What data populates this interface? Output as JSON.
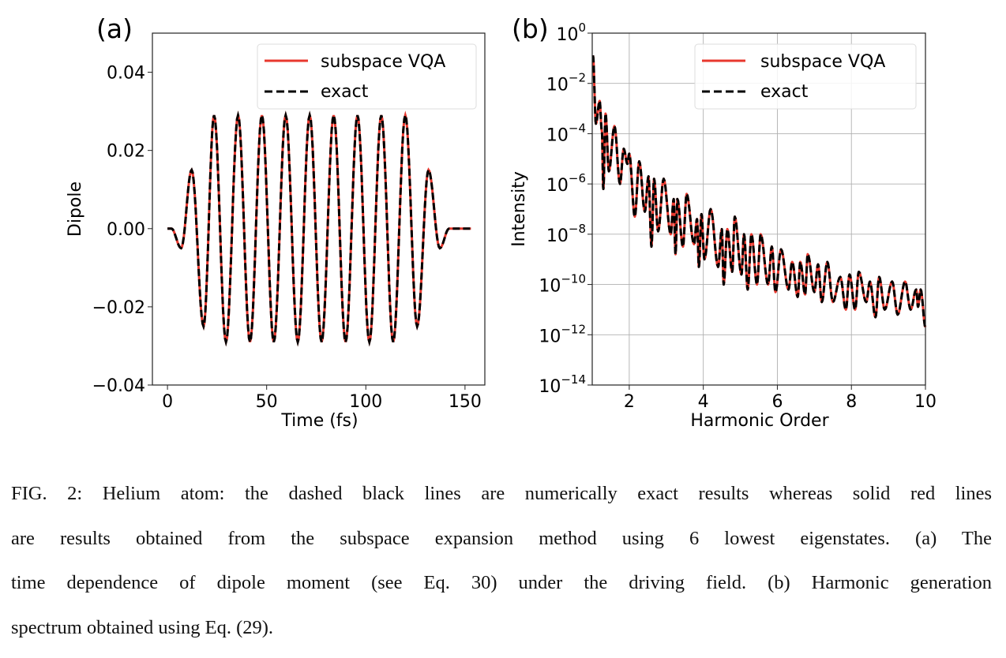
{
  "figure": {
    "caption_lines": [
      "FIG. 2: Helium atom: the dashed black lines are numerically exact results whereas solid red lines",
      "are results obtained from the subspace expansion method using 6 lowest eigenstates.  (a) The",
      "time dependence of dipole moment (see Eq. 30) under the driving field. (b) Harmonic generation",
      "spectrum obtained using Eq. (29)."
    ]
  },
  "colors": {
    "vqa": "#e8382e",
    "exact": "#000000",
    "grid": "#b0b0b0"
  },
  "chart_data": [
    {
      "panel_label": "(a)",
      "type": "line",
      "xlabel": "Time (fs)",
      "ylabel": "Dipole",
      "xlim": [
        -7.6,
        160
      ],
      "ylim": [
        -0.04,
        0.05
      ],
      "xticks": [
        {
          "v": 0,
          "label": "0"
        },
        {
          "v": 50,
          "label": "50"
        },
        {
          "v": 100,
          "label": "100"
        },
        {
          "v": 150,
          "label": "150"
        }
      ],
      "yticks": [
        {
          "v": -0.04,
          "label": "−0.04"
        },
        {
          "v": -0.02,
          "label": "−0.02"
        },
        {
          "v": 0,
          "label": "0.00"
        },
        {
          "v": 0.02,
          "label": "0.02"
        },
        {
          "v": 0.04,
          "label": "0.04"
        }
      ],
      "grid": false,
      "legend": {
        "placement": "top-right",
        "entries": [
          {
            "name": "subspace VQA",
            "style": "solid-red"
          },
          {
            "name": "exact",
            "style": "dashed-black"
          }
        ]
      },
      "extrema": [
        [
          0,
          0
        ],
        [
          2,
          0
        ],
        [
          6.9,
          -0.005
        ],
        [
          12.2,
          0.015
        ],
        [
          18.2,
          -0.025
        ],
        [
          23.5,
          0.029
        ],
        [
          29.5,
          -0.029
        ],
        [
          35.6,
          0.029
        ],
        [
          41.6,
          -0.029
        ],
        [
          47.6,
          0.029
        ],
        [
          53.6,
          -0.029
        ],
        [
          59.6,
          0.029
        ],
        [
          65.7,
          -0.029
        ],
        [
          71.7,
          0.029
        ],
        [
          77.7,
          -0.029
        ],
        [
          83.8,
          0.029
        ],
        [
          89.8,
          -0.029
        ],
        [
          95.8,
          0.029
        ],
        [
          101.8,
          -0.029
        ],
        [
          107.8,
          0.029
        ],
        [
          113.8,
          -0.029
        ],
        [
          119.9,
          0.029
        ],
        [
          125.9,
          -0.025
        ],
        [
          131.6,
          0.015
        ],
        [
          137.3,
          -0.005
        ],
        [
          142,
          0
        ],
        [
          153,
          0
        ]
      ]
    },
    {
      "panel_label": "(b)",
      "type": "line",
      "xlabel": "Harmonic Order",
      "ylabel": "Intensity",
      "yscale": "log",
      "xlim": [
        1,
        10
      ],
      "ylim": [
        1e-14,
        1
      ],
      "xticks": [
        {
          "v": 2,
          "label": "2"
        },
        {
          "v": 4,
          "label": "4"
        },
        {
          "v": 6,
          "label": "6"
        },
        {
          "v": 8,
          "label": "8"
        },
        {
          "v": 10,
          "label": "10"
        }
      ],
      "yticks": [
        {
          "v": 1,
          "base": "10",
          "exp": "0"
        },
        {
          "v": 0.01,
          "base": "10",
          "exp": "−2"
        },
        {
          "v": 0.0001,
          "base": "10",
          "exp": "−4"
        },
        {
          "v": 1e-06,
          "base": "10",
          "exp": "−6"
        },
        {
          "v": 1e-08,
          "base": "10",
          "exp": "−8"
        },
        {
          "v": 1e-10,
          "base": "10",
          "exp": "−10"
        },
        {
          "v": 1e-12,
          "base": "10",
          "exp": "−12"
        },
        {
          "v": 1e-14,
          "base": "10",
          "exp": "−14"
        }
      ],
      "grid": true,
      "legend": {
        "placement": "top-right",
        "entries": [
          {
            "name": "subspace VQA",
            "style": "solid-red"
          },
          {
            "name": "exact",
            "style": "dashed-black"
          }
        ]
      },
      "extrema": [
        [
          1.02,
          0.13
        ],
        [
          1.1,
          0.00025
        ],
        [
          1.2,
          0.002
        ],
        [
          1.26,
          0.00013
        ],
        [
          1.3,
          6.3e-07
        ],
        [
          1.36,
          0.00063
        ],
        [
          1.45,
          3.2e-06
        ],
        [
          1.6,
          0.0002
        ],
        [
          1.75,
          1e-06
        ],
        [
          1.85,
          2.5e-05
        ],
        [
          1.95,
          6.3e-06
        ],
        [
          2.0,
          1.6e-05
        ],
        [
          2.15,
          5e-08
        ],
        [
          2.27,
          7.9e-06
        ],
        [
          2.42,
          7.9e-08
        ],
        [
          2.52,
          2e-06
        ],
        [
          2.6,
          3.2e-09
        ],
        [
          2.67,
          1.6e-06
        ],
        [
          2.78,
          1.3e-08
        ],
        [
          2.93,
          1.6e-06
        ],
        [
          3.12,
          1e-08
        ],
        [
          3.2,
          2.5e-07
        ],
        [
          3.25,
          1.6e-09
        ],
        [
          3.3,
          2.5e-07
        ],
        [
          3.45,
          3.2e-09
        ],
        [
          3.55,
          4e-07
        ],
        [
          3.75,
          4e-09
        ],
        [
          3.83,
          4e-08
        ],
        [
          3.88,
          5e-10
        ],
        [
          3.95,
          6.3e-08
        ],
        [
          4.03,
          1e-09
        ],
        [
          4.2,
          1e-07
        ],
        [
          4.4,
          5e-10
        ],
        [
          4.5,
          1.6e-08
        ],
        [
          4.55,
          1e-10
        ],
        [
          4.65,
          1.6e-08
        ],
        [
          4.78,
          3.2e-10
        ],
        [
          4.85,
          5e-08
        ],
        [
          5.03,
          2.5e-10
        ],
        [
          5.1,
          1e-08
        ],
        [
          5.2,
          6.3e-11
        ],
        [
          5.3,
          1e-08
        ],
        [
          5.45,
          1e-10
        ],
        [
          5.55,
          1e-08
        ],
        [
          5.75,
          1e-10
        ],
        [
          5.85,
          3.2e-09
        ],
        [
          5.95,
          5e-11
        ],
        [
          6.1,
          2.5e-09
        ],
        [
          6.3,
          6.3e-11
        ],
        [
          6.4,
          7.9e-10
        ],
        [
          6.55,
          3.2e-11
        ],
        [
          6.62,
          7.9e-10
        ],
        [
          6.75,
          4e-11
        ],
        [
          6.82,
          1.6e-09
        ],
        [
          7.0,
          5e-11
        ],
        [
          7.1,
          6.3e-10
        ],
        [
          7.2,
          2e-11
        ],
        [
          7.35,
          7.9e-10
        ],
        [
          7.5,
          2e-11
        ],
        [
          7.7,
          2e-10
        ],
        [
          7.85,
          1e-11
        ],
        [
          7.95,
          2.5e-10
        ],
        [
          8.1,
          1e-11
        ],
        [
          8.2,
          3.2e-10
        ],
        [
          8.4,
          2e-11
        ],
        [
          8.5,
          1.3e-10
        ],
        [
          8.65,
          5e-12
        ],
        [
          8.75,
          2e-10
        ],
        [
          8.9,
          1e-11
        ],
        [
          9.1,
          1.3e-10
        ],
        [
          9.25,
          6.3e-12
        ],
        [
          9.45,
          1.3e-10
        ],
        [
          9.6,
          1e-11
        ],
        [
          9.75,
          6.3e-11
        ],
        [
          9.8,
          1.3e-11
        ],
        [
          9.87,
          6.3e-11
        ],
        [
          10.0,
          2e-12
        ]
      ]
    }
  ]
}
